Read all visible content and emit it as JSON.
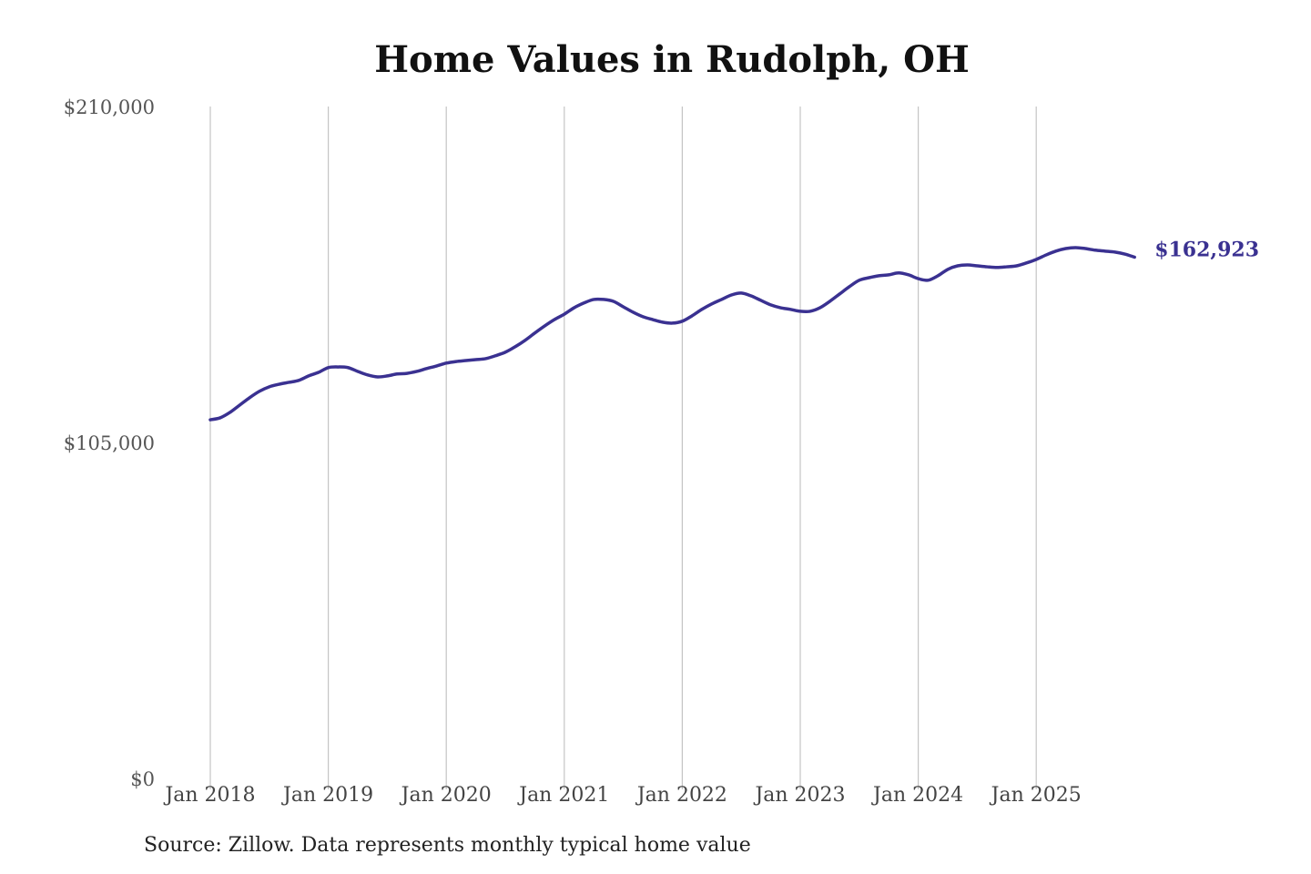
{
  "chart_data": {
    "type": "line",
    "title": "Home Values in Rudolph, OH",
    "source": "Source: Zillow. Data represents monthly typical home value",
    "xlabel": "",
    "ylabel": "",
    "ylim": [
      0,
      210000
    ],
    "y_ticks": [
      "$0",
      "$105,000",
      "$210,000"
    ],
    "y_tick_values": [
      0,
      105000,
      210000
    ],
    "x_ticks": [
      "Jan 2018",
      "Jan 2019",
      "Jan 2020",
      "Jan 2021",
      "Jan 2022",
      "Jan 2023",
      "Jan 2024",
      "Jan 2025"
    ],
    "grid": "vertical lines at x ticks",
    "line_color": "#3a3191",
    "end_label": "$162,923",
    "x_start": "Jan 2018",
    "x_frequency": "monthly",
    "series": [
      {
        "values": [
          112100,
          112700,
          114400,
          116700,
          119000,
          121000,
          122400,
          123200,
          123800,
          124400,
          125800,
          126900,
          128400,
          128600,
          128400,
          127200,
          126100,
          125500,
          125800,
          126400,
          126600,
          127200,
          128100,
          128900,
          129800,
          130300,
          130600,
          130900,
          131200,
          132100,
          133200,
          134900,
          136900,
          139200,
          141400,
          143400,
          145100,
          147100,
          148600,
          149700,
          149700,
          149100,
          147400,
          145700,
          144300,
          143400,
          142600,
          142300,
          142900,
          144600,
          146600,
          148300,
          149700,
          151100,
          151700,
          150800,
          149400,
          148000,
          147100,
          146600,
          146000,
          146000,
          147100,
          149100,
          151400,
          153700,
          155700,
          156500,
          157100,
          157400,
          158000,
          157400,
          156200,
          155700,
          157100,
          159100,
          160200,
          160500,
          160200,
          159900,
          159700,
          159900,
          160200,
          161100,
          162200,
          163600,
          164800,
          165600,
          165900,
          165600,
          165100,
          164800,
          164500,
          163900,
          162923
        ]
      }
    ]
  }
}
